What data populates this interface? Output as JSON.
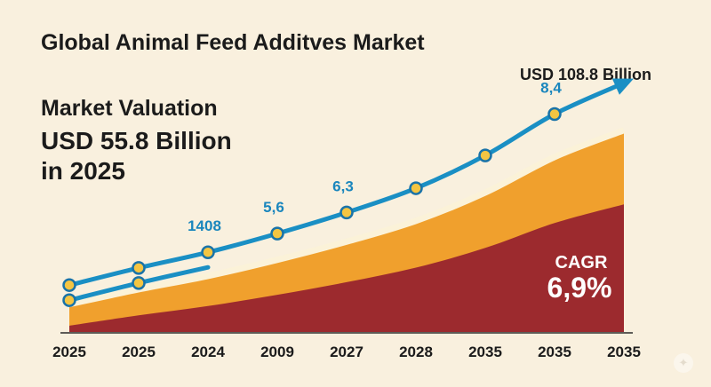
{
  "chart_data": {
    "type": "area",
    "title": "Global Animal Feed Additves Market",
    "xlabel": "",
    "ylabel": "",
    "categories": [
      "2025",
      "2025",
      "2024",
      "2009",
      "2027",
      "2028",
      "2035",
      "2035",
      "2035"
    ],
    "series": [
      {
        "values": [
          60,
          82,
          102,
          126,
          153,
          184,
          226,
          279,
          null
        ]
      }
    ],
    "point_labels": [
      "",
      "",
      "1408",
      "5,6",
      "6,3",
      "",
      "",
      "8,4",
      ""
    ],
    "annotations": {
      "valuation_heading": "Market Valuation",
      "valuation_line1": "USD 55.8 Billion",
      "valuation_line2": "in 2025",
      "end_value": "USD 108.8 Billion",
      "cagr_label": "CAGR",
      "cagr_value": "6,9%"
    },
    "grid": false,
    "colors": {
      "background": "#f9f0de",
      "line": "#1a8fc4",
      "marker_fill": "#f5c542",
      "marker_stroke": "#1a73a8",
      "area_orange": "#f0a02d",
      "area_red": "#9c2a2e",
      "band_cream": "#fbf2d8",
      "label_color": "#1a86bd"
    }
  }
}
